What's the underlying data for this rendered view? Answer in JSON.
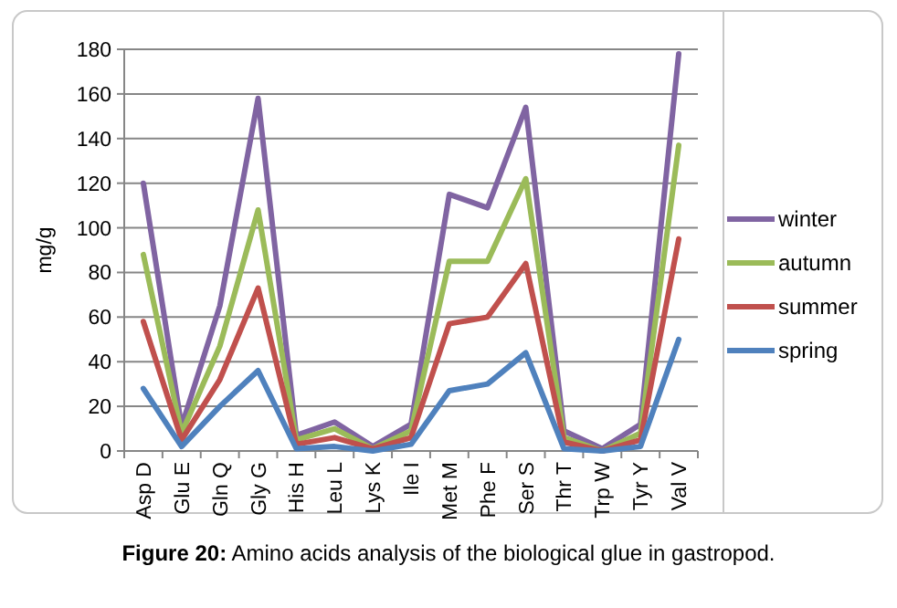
{
  "chart_data": {
    "type": "line",
    "ylabel": "mg/g",
    "categories": [
      "Asp D",
      "Glu E",
      "Gln Q",
      "Gly G",
      "His H",
      "Leu L",
      "Lys K",
      "Ile I",
      "Met M",
      "Phe F",
      "Ser S",
      "Thr T",
      "Trp W",
      "Tyr Y",
      "Val V"
    ],
    "series": [
      {
        "name": "winter",
        "color": "#8064a2",
        "values": [
          120,
          11,
          65,
          158,
          7,
          13,
          2,
          12,
          115,
          109,
          154,
          9,
          1,
          12,
          178
        ]
      },
      {
        "name": "autumn",
        "color": "#9bbb59",
        "values": [
          88,
          8,
          47,
          108,
          5,
          10,
          1,
          9,
          85,
          85,
          122,
          6,
          0,
          8,
          137
        ]
      },
      {
        "name": "summer",
        "color": "#c0504d",
        "values": [
          58,
          5,
          32,
          73,
          3,
          6,
          1,
          6,
          57,
          60,
          84,
          4,
          0,
          5,
          95
        ]
      },
      {
        "name": "spring",
        "color": "#4f81bd",
        "values": [
          28,
          2,
          20,
          36,
          1,
          2,
          0,
          3,
          27,
          30,
          44,
          1,
          0,
          2,
          50
        ]
      }
    ],
    "ylim": [
      0,
      180
    ],
    "yticks": [
      0,
      20,
      40,
      60,
      80,
      100,
      120,
      140,
      160,
      180
    ],
    "grid": "y",
    "legend": "right",
    "marker": "none",
    "line_style": "solid",
    "annotations": [
      "Figure 20: Amino acids analysis of the biological glue in gastropod."
    ]
  }
}
